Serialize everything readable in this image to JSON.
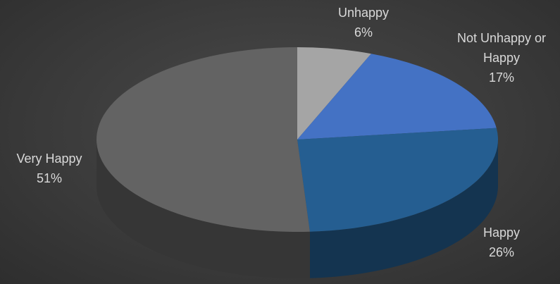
{
  "chart_data": {
    "type": "pie",
    "categories": [
      "Unhappy",
      "Not Unhappy or Happy",
      "Happy",
      "Very Happy"
    ],
    "values": [
      6,
      17,
      26,
      51
    ],
    "value_labels": [
      "6%",
      "17%",
      "26%",
      "51%"
    ],
    "colors": [
      "#a5a5a5",
      "#4472c4",
      "#255e91",
      "#636363"
    ]
  }
}
